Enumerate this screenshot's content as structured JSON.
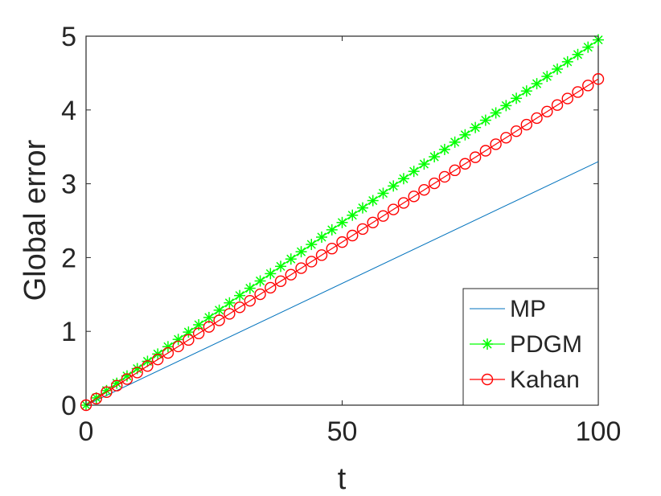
{
  "chart_data": {
    "type": "line",
    "title": "",
    "xlabel": "t",
    "ylabel": "Global error",
    "xlim": [
      0,
      100
    ],
    "ylim": [
      0,
      5
    ],
    "xticks": [
      0,
      50,
      100
    ],
    "yticks": [
      0,
      1,
      2,
      3,
      4,
      5
    ],
    "grid": false,
    "legend_position": "bottom-right",
    "series": [
      {
        "name": "MP",
        "color": "#0072BD",
        "marker": "none",
        "x": [
          0,
          100
        ],
        "y": [
          0,
          3.3
        ]
      },
      {
        "name": "PDGM",
        "color": "#00FF00",
        "marker": "asterisk",
        "x_start": 0,
        "x_end": 100,
        "x_step": 2,
        "y_start": 0,
        "y_end": 4.95
      },
      {
        "name": "Kahan",
        "color": "#FF0000",
        "marker": "circle",
        "x_start": 0,
        "x_end": 100,
        "x_step": 2,
        "y_start": 0,
        "y_end": 4.42
      }
    ]
  }
}
